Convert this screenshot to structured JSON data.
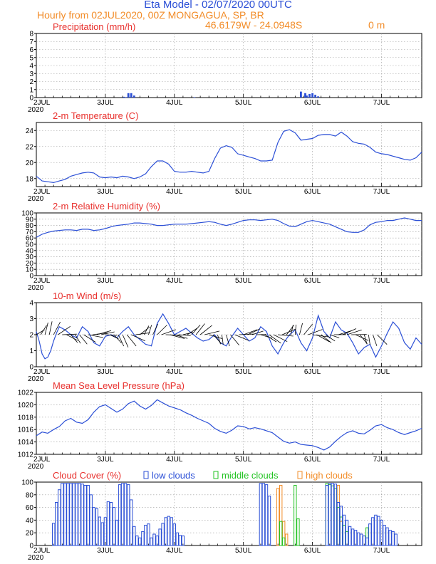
{
  "header": {
    "title": "Eta Model - 02/07/2020 00UTC",
    "subtitle": "Hourly from 02JUL2020, 00Z  MONGAGUA, SP, BR",
    "coords": "46.6179W - 24.0948S",
    "elevation": "0   m"
  },
  "colors": {
    "line": "#2b4fd6",
    "title": "#e8312e",
    "header": "#2b4fd6",
    "orange": "#f28c28",
    "green": "#22c322",
    "low": "#2b4fd6",
    "mid": "#22c322",
    "high": "#f28c28"
  },
  "x_ticks": [
    "2JUL",
    "3JUL",
    "4JUL",
    "5JUL",
    "6JUL",
    "7JUL"
  ],
  "x_year": "2020",
  "chart_data": [
    {
      "type": "bar",
      "id": "precip",
      "title": "Precipitation (mm/h)",
      "ylim": [
        0,
        8
      ],
      "yticks": [
        0,
        1,
        2,
        3,
        4,
        5,
        6,
        7,
        8
      ],
      "x": [
        30.5,
        31,
        32,
        33,
        34,
        55,
        92,
        93.5,
        94,
        95,
        96,
        97,
        98
      ],
      "values": [
        0.1,
        0.05,
        0.55,
        0.55,
        0.25,
        0.05,
        0.75,
        0.55,
        0.25,
        0.45,
        0.55,
        0.35,
        0.15
      ]
    },
    {
      "type": "line",
      "id": "temp",
      "title": "2-m Temperature (C)",
      "ylim": [
        17,
        25
      ],
      "yticks": [
        18,
        20,
        22,
        24
      ],
      "x": [
        0,
        2,
        4,
        6,
        8,
        10,
        12,
        14,
        16,
        18,
        20,
        22,
        24,
        26,
        28,
        30,
        32,
        34,
        36,
        38,
        40,
        42,
        44,
        46,
        48,
        50,
        52,
        54,
        56,
        58,
        60,
        62,
        64,
        66,
        68,
        70,
        72,
        74,
        76,
        78,
        80,
        82,
        84,
        86,
        88,
        90,
        92,
        94,
        96,
        98,
        100,
        102,
        104,
        106,
        108,
        110,
        112,
        114,
        116,
        118,
        120,
        122,
        124,
        126,
        128,
        130,
        132,
        134
      ],
      "values": [
        18.3,
        17.7,
        17.6,
        17.5,
        17.7,
        17.9,
        18.3,
        18.5,
        18.7,
        18.8,
        18.7,
        18.2,
        18.1,
        18.2,
        18.1,
        18.3,
        18.2,
        18.0,
        18.2,
        18.6,
        19.5,
        20.2,
        20.2,
        19.8,
        18.9,
        18.8,
        18.8,
        18.9,
        18.8,
        18.7,
        18.9,
        20.5,
        21.8,
        22.1,
        21.9,
        21.1,
        20.9,
        20.7,
        20.5,
        20.2,
        20.2,
        20.3,
        22.5,
        23.9,
        24.1,
        23.7,
        22.8,
        22.9,
        23.0,
        23.4,
        23.5,
        23.5,
        23.3,
        23.8,
        23.3,
        22.6,
        22.4,
        22.3,
        21.9,
        21.3,
        21.1,
        21.0,
        20.8,
        20.6,
        20.4,
        20.3,
        20.6,
        21.3
      ]
    },
    {
      "type": "line",
      "id": "rh",
      "title": "2-m Relative Humidity (%)",
      "ylim": [
        0,
        100
      ],
      "yticks": [
        0,
        10,
        20,
        30,
        40,
        50,
        60,
        70,
        80,
        90,
        100
      ],
      "x": [
        0,
        2,
        4,
        6,
        8,
        10,
        12,
        14,
        16,
        18,
        20,
        22,
        24,
        26,
        28,
        30,
        32,
        34,
        36,
        38,
        40,
        42,
        44,
        46,
        48,
        50,
        52,
        54,
        56,
        58,
        60,
        62,
        64,
        66,
        68,
        70,
        72,
        74,
        76,
        78,
        80,
        82,
        84,
        86,
        88,
        90,
        92,
        94,
        96,
        98,
        100,
        102,
        104,
        106,
        108,
        110,
        112,
        114,
        116,
        118,
        120,
        122,
        124,
        126,
        128,
        130,
        132,
        134
      ],
      "values": [
        61,
        66,
        69,
        71,
        72,
        73,
        73,
        72,
        74,
        74,
        72,
        73,
        75,
        78,
        80,
        81,
        82,
        84,
        84,
        83,
        82,
        80,
        80,
        81,
        82,
        82,
        82,
        83,
        84,
        85,
        86,
        85,
        82,
        80,
        82,
        85,
        88,
        89,
        89,
        88,
        89,
        90,
        88,
        83,
        79,
        78,
        82,
        86,
        88,
        86,
        84,
        82,
        78,
        74,
        70,
        69,
        69,
        73,
        81,
        85,
        86,
        88,
        88,
        90,
        92,
        90,
        88,
        88
      ]
    },
    {
      "type": "line",
      "id": "wind",
      "title": "10-m Wind (m/s)",
      "ylim": [
        0,
        4
      ],
      "yticks": [
        0,
        1,
        2,
        3,
        4
      ],
      "x": [
        0,
        1,
        2,
        3,
        4,
        5,
        6,
        7,
        8,
        10,
        12,
        14,
        16,
        18,
        20,
        22,
        24,
        26,
        28,
        30,
        32,
        34,
        36,
        38,
        40,
        42,
        44,
        46,
        48,
        50,
        52,
        54,
        56,
        58,
        60,
        62,
        64,
        66,
        68,
        70,
        72,
        74,
        76,
        78,
        80,
        82,
        84,
        86,
        88,
        90,
        92,
        94,
        96,
        98,
        100,
        102,
        104,
        106,
        108,
        110,
        112,
        114,
        116,
        118,
        120,
        122,
        124,
        126,
        128,
        130,
        132,
        134
      ],
      "values": [
        2.2,
        1.6,
        0.8,
        0.5,
        0.6,
        1.0,
        1.6,
        2.1,
        2.5,
        2.3,
        2.0,
        1.8,
        2.5,
        2.2,
        1.5,
        1.3,
        1.9,
        2.0,
        1.8,
        2.2,
        2.5,
        2.0,
        1.7,
        1.4,
        1.3,
        2.7,
        3.3,
        2.7,
        2.0,
        2.2,
        2.4,
        2.1,
        1.8,
        1.6,
        1.7,
        2.0,
        1.5,
        1.3,
        1.9,
        2.4,
        2.0,
        1.6,
        1.8,
        2.5,
        2.2,
        1.3,
        0.8,
        1.5,
        2.0,
        2.3,
        1.5,
        1.0,
        1.8,
        3.2,
        2.2,
        1.8,
        2.8,
        2.3,
        2.1,
        1.5,
        0.8,
        1.2,
        1.4,
        0.6,
        1.3,
        2.1,
        2.8,
        2.4,
        1.5,
        1.1,
        1.8,
        1.4
      ]
    },
    {
      "type": "line",
      "id": "mslp",
      "title": "Mean Sea Level Pressure (hPa)",
      "ylim": [
        1012,
        1022
      ],
      "yticks": [
        1012,
        1014,
        1016,
        1018,
        1020,
        1022
      ],
      "x": [
        0,
        2,
        4,
        6,
        8,
        10,
        12,
        14,
        16,
        18,
        20,
        22,
        24,
        26,
        28,
        30,
        32,
        34,
        36,
        38,
        40,
        42,
        44,
        46,
        48,
        50,
        52,
        54,
        56,
        58,
        60,
        62,
        64,
        66,
        68,
        70,
        72,
        74,
        76,
        78,
        80,
        82,
        84,
        86,
        88,
        90,
        92,
        94,
        96,
        98,
        100,
        102,
        104,
        106,
        108,
        110,
        112,
        114,
        116,
        118,
        120,
        122,
        124,
        126,
        128,
        130,
        132,
        134
      ],
      "values": [
        1015.0,
        1015.6,
        1015.4,
        1016.0,
        1016.5,
        1017.4,
        1017.8,
        1017.2,
        1017.0,
        1017.6,
        1018.8,
        1019.7,
        1020.0,
        1019.4,
        1018.8,
        1019.3,
        1020.2,
        1020.6,
        1019.8,
        1019.3,
        1019.9,
        1020.8,
        1020.3,
        1019.8,
        1019.5,
        1019.2,
        1018.7,
        1018.3,
        1017.8,
        1017.4,
        1017.0,
        1016.2,
        1015.7,
        1015.4,
        1015.9,
        1016.6,
        1016.5,
        1016.1,
        1016.3,
        1016.1,
        1015.8,
        1015.5,
        1014.8,
        1014.1,
        1013.8,
        1014.0,
        1013.6,
        1013.5,
        1013.4,
        1013.1,
        1012.7,
        1013.2,
        1014.1,
        1014.9,
        1015.5,
        1015.8,
        1015.4,
        1015.3,
        1015.9,
        1016.6,
        1016.8,
        1016.3,
        1016.0,
        1015.5,
        1015.2,
        1015.5,
        1015.8,
        1016.2
      ]
    },
    {
      "type": "bar",
      "id": "cloud",
      "title": "Cloud Cover (%)",
      "ylim": [
        0,
        100
      ],
      "yticks": [
        0,
        20,
        40,
        60,
        80,
        100
      ],
      "legend": [
        "low clouds",
        "middle clouds",
        "high clouds"
      ],
      "low": {
        "x": [
          6,
          7,
          8,
          9,
          10,
          11,
          12,
          13,
          14,
          15,
          16,
          17,
          18,
          19,
          20,
          21,
          22,
          23,
          24,
          25,
          26,
          27,
          28,
          29,
          30,
          31,
          32,
          33,
          34,
          35,
          36,
          37,
          38,
          39,
          40,
          41,
          42,
          43,
          44,
          45,
          46,
          47,
          48,
          49,
          50,
          51,
          78,
          79,
          80,
          81,
          82,
          101,
          102,
          103,
          104,
          105,
          106,
          107,
          108,
          109,
          110,
          111,
          112,
          113,
          114,
          115,
          116,
          117,
          118,
          119,
          120,
          121,
          122,
          123,
          124,
          125
        ],
        "values": [
          35,
          68,
          88,
          98,
          98,
          98,
          98,
          98,
          98,
          98,
          97,
          95,
          95,
          80,
          60,
          58,
          45,
          36,
          44,
          69,
          68,
          60,
          40,
          96,
          98,
          98,
          96,
          72,
          30,
          15,
          12,
          22,
          32,
          34,
          12,
          18,
          15,
          26,
          35,
          44,
          46,
          44,
          34,
          20,
          16,
          15,
          98,
          98,
          96,
          78,
          0,
          95,
          98,
          98,
          97,
          68,
          62,
          48,
          40,
          30,
          26,
          24,
          20,
          18,
          15,
          12,
          34,
          44,
          48,
          46,
          40,
          32,
          28,
          24,
          22,
          18
        ]
      },
      "mid": {
        "x": [
          85,
          86,
          90,
          91,
          101,
          102,
          103,
          104,
          105,
          106,
          107,
          108,
          115
        ],
        "values": [
          38,
          12,
          95,
          42,
          98,
          96,
          94,
          90,
          60,
          45,
          32,
          22,
          28
        ]
      },
      "high": {
        "x": [
          84,
          85,
          86,
          87,
          105,
          106
        ],
        "values": [
          90,
          95,
          38,
          18,
          95,
          38
        ]
      }
    }
  ]
}
